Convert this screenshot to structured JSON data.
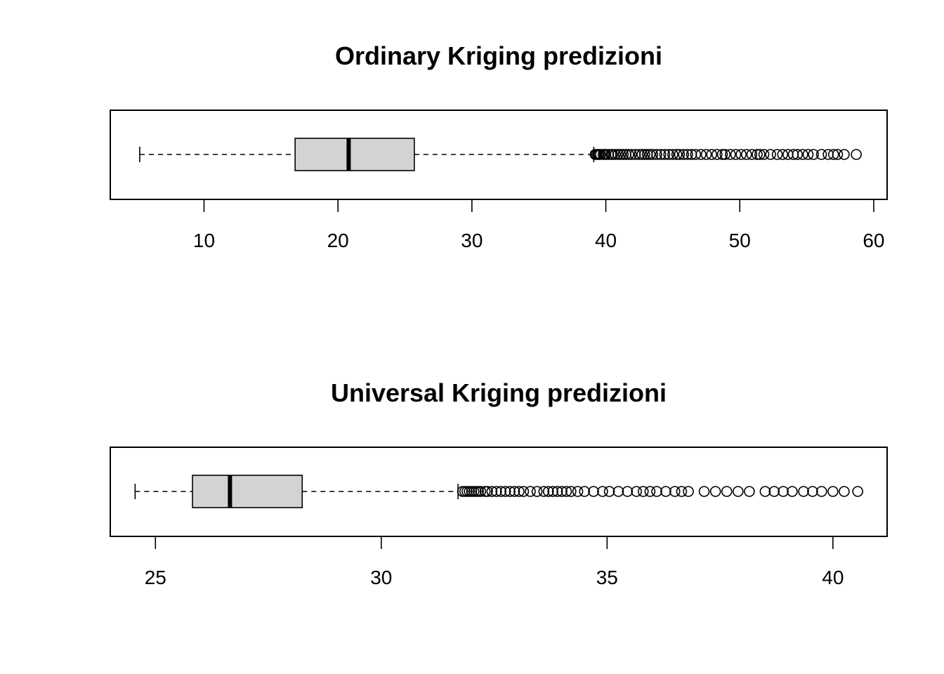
{
  "chart_data": [
    {
      "type": "boxplot",
      "orientation": "horizontal",
      "title": "Ordinary Kriging predizioni",
      "xlim": [
        3.0,
        61.0
      ],
      "xticks": [
        10,
        20,
        30,
        40,
        50,
        60
      ],
      "xtick_labels": [
        "10",
        "20",
        "30",
        "40",
        "50",
        "60"
      ],
      "box": {
        "whisker_low": 5.2,
        "q1": 16.8,
        "median": 20.8,
        "q3": 25.7,
        "whisker_high": 39.1
      },
      "outliers": [
        39.2,
        39.3,
        39.4,
        39.5,
        39.6,
        39.8,
        39.9,
        40.0,
        40.2,
        40.4,
        40.5,
        40.7,
        40.9,
        41.1,
        41.3,
        41.5,
        41.7,
        41.9,
        42.2,
        42.5,
        42.7,
        42.9,
        43.1,
        43.3,
        43.5,
        43.8,
        44.1,
        44.4,
        44.7,
        45.0,
        45.3,
        45.5,
        45.8,
        46.1,
        46.4,
        46.7,
        47.1,
        47.5,
        47.9,
        48.3,
        48.7,
        48.9,
        49.3,
        49.7,
        50.1,
        50.5,
        50.9,
        51.3,
        51.5,
        51.8,
        52.3,
        52.8,
        53.2,
        53.6,
        54.0,
        54.3,
        54.7,
        55.1,
        55.5,
        56.1,
        56.6,
        57.0,
        57.3,
        57.8,
        58.7
      ],
      "box_fill": "#d3d3d3"
    },
    {
      "type": "boxplot",
      "orientation": "horizontal",
      "title": "Universal Kriging predizioni",
      "xlim": [
        24.0,
        41.2
      ],
      "xticks": [
        25,
        30,
        35,
        40
      ],
      "xtick_labels": [
        "25",
        "30",
        "35",
        "40"
      ],
      "box": {
        "whisker_low": 24.55,
        "q1": 25.82,
        "median": 26.65,
        "q3": 28.25,
        "whisker_high": 31.7
      },
      "outliers": [
        31.8,
        31.85,
        31.9,
        31.95,
        32.0,
        32.05,
        32.1,
        32.15,
        32.2,
        32.3,
        32.35,
        32.45,
        32.55,
        32.65,
        32.75,
        32.85,
        32.95,
        33.05,
        33.15,
        33.3,
        33.45,
        33.6,
        33.7,
        33.8,
        33.9,
        34.0,
        34.1,
        34.2,
        34.35,
        34.5,
        34.7,
        34.9,
        35.05,
        35.25,
        35.45,
        35.65,
        35.8,
        35.95,
        36.1,
        36.3,
        36.5,
        36.65,
        36.8,
        37.15,
        37.4,
        37.65,
        37.9,
        38.15,
        38.5,
        38.7,
        38.9,
        39.1,
        39.35,
        39.55,
        39.75,
        40.0,
        40.25,
        40.55
      ],
      "box_fill": "#d3d3d3"
    }
  ]
}
